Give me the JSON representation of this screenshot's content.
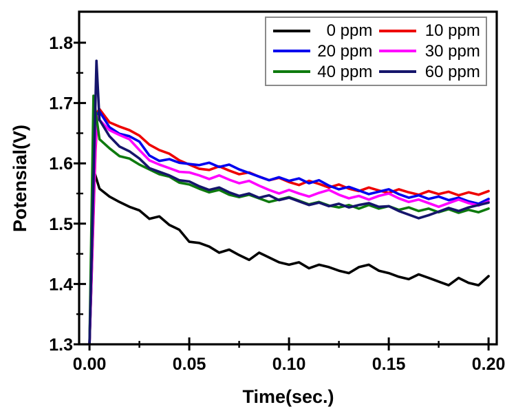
{
  "figure": {
    "background": "#ffffff",
    "frame_color": "#000000"
  },
  "legend": {
    "position": "top-right",
    "columns": 2,
    "border_color": "#8a8a8a",
    "entries": [
      "0 ppm",
      "10 ppm",
      "20 ppm",
      "30 ppm",
      "40 ppm",
      "60 ppm"
    ]
  },
  "chart_data": {
    "type": "line",
    "title": "",
    "xlabel": "Time(sec.)",
    "ylabel": "Potensial(V)",
    "xlim": [
      -0.0052,
      0.2041
    ],
    "ylim": [
      1.3,
      1.8514
    ],
    "grid": false,
    "legend_position": "top-right",
    "x_major_ticks": {
      "values": [
        0.0,
        0.05,
        0.1,
        0.15,
        0.2
      ],
      "labels": [
        "0.00",
        "0.05",
        "0.10",
        "0.15",
        "0.20"
      ]
    },
    "x_minor_ticks": [
      0.025,
      0.075,
      0.125,
      0.175
    ],
    "y_major_ticks": {
      "values": [
        1.3,
        1.4,
        1.5,
        1.6,
        1.7,
        1.8
      ],
      "labels": [
        "1.3",
        "1.4",
        "1.5",
        "1.6",
        "1.7",
        "1.8"
      ]
    },
    "y_minor_ticks": [
      1.35,
      1.45,
      1.55,
      1.65,
      1.75
    ],
    "series": [
      {
        "name": "0 ppm",
        "color": "#000000",
        "points": [
          [
            0,
            1.3
          ],
          [
            0.002,
            1.59
          ],
          [
            0.005,
            1.558
          ],
          [
            0.01,
            1.545
          ],
          [
            0.015,
            1.536
          ],
          [
            0.02,
            1.528
          ],
          [
            0.025,
            1.522
          ],
          [
            0.03,
            1.508
          ],
          [
            0.035,
            1.512
          ],
          [
            0.04,
            1.498
          ],
          [
            0.045,
            1.49
          ],
          [
            0.05,
            1.47
          ],
          [
            0.055,
            1.468
          ],
          [
            0.06,
            1.462
          ],
          [
            0.065,
            1.452
          ],
          [
            0.07,
            1.457
          ],
          [
            0.075,
            1.448
          ],
          [
            0.08,
            1.44
          ],
          [
            0.085,
            1.452
          ],
          [
            0.09,
            1.444
          ],
          [
            0.095,
            1.436
          ],
          [
            0.1,
            1.432
          ],
          [
            0.105,
            1.436
          ],
          [
            0.11,
            1.426
          ],
          [
            0.115,
            1.432
          ],
          [
            0.12,
            1.428
          ],
          [
            0.125,
            1.422
          ],
          [
            0.13,
            1.418
          ],
          [
            0.135,
            1.428
          ],
          [
            0.14,
            1.432
          ],
          [
            0.145,
            1.422
          ],
          [
            0.15,
            1.418
          ],
          [
            0.155,
            1.412
          ],
          [
            0.16,
            1.408
          ],
          [
            0.165,
            1.416
          ],
          [
            0.17,
            1.41
          ],
          [
            0.175,
            1.404
          ],
          [
            0.18,
            1.398
          ],
          [
            0.185,
            1.41
          ],
          [
            0.19,
            1.402
          ],
          [
            0.195,
            1.398
          ],
          [
            0.2,
            1.413
          ]
        ]
      },
      {
        "name": "10 ppm",
        "color": "#ee0000",
        "points": [
          [
            0,
            1.3
          ],
          [
            0.003,
            1.62
          ],
          [
            0.004,
            1.685
          ],
          [
            0.005,
            1.69
          ],
          [
            0.01,
            1.668
          ],
          [
            0.015,
            1.661
          ],
          [
            0.02,
            1.655
          ],
          [
            0.025,
            1.646
          ],
          [
            0.03,
            1.631
          ],
          [
            0.035,
            1.622
          ],
          [
            0.04,
            1.616
          ],
          [
            0.045,
            1.605
          ],
          [
            0.05,
            1.598
          ],
          [
            0.055,
            1.591
          ],
          [
            0.06,
            1.589
          ],
          [
            0.065,
            1.595
          ],
          [
            0.07,
            1.588
          ],
          [
            0.075,
            1.582
          ],
          [
            0.08,
            1.585
          ],
          [
            0.085,
            1.578
          ],
          [
            0.09,
            1.572
          ],
          [
            0.095,
            1.576
          ],
          [
            0.1,
            1.569
          ],
          [
            0.105,
            1.564
          ],
          [
            0.11,
            1.571
          ],
          [
            0.115,
            1.566
          ],
          [
            0.12,
            1.56
          ],
          [
            0.125,
            1.565
          ],
          [
            0.13,
            1.558
          ],
          [
            0.135,
            1.554
          ],
          [
            0.14,
            1.56
          ],
          [
            0.145,
            1.555
          ],
          [
            0.15,
            1.551
          ],
          [
            0.155,
            1.557
          ],
          [
            0.16,
            1.552
          ],
          [
            0.165,
            1.548
          ],
          [
            0.17,
            1.554
          ],
          [
            0.175,
            1.549
          ],
          [
            0.18,
            1.553
          ],
          [
            0.185,
            1.547
          ],
          [
            0.19,
            1.552
          ],
          [
            0.195,
            1.548
          ],
          [
            0.2,
            1.554
          ]
        ]
      },
      {
        "name": "20 ppm",
        "color": "#0000ee",
        "points": [
          [
            0,
            1.3
          ],
          [
            0.003,
            1.64
          ],
          [
            0.004,
            1.682
          ],
          [
            0.005,
            1.686
          ],
          [
            0.01,
            1.66
          ],
          [
            0.015,
            1.649
          ],
          [
            0.02,
            1.645
          ],
          [
            0.025,
            1.636
          ],
          [
            0.03,
            1.613
          ],
          [
            0.035,
            1.604
          ],
          [
            0.04,
            1.607
          ],
          [
            0.045,
            1.601
          ],
          [
            0.05,
            1.599
          ],
          [
            0.055,
            1.597
          ],
          [
            0.06,
            1.601
          ],
          [
            0.065,
            1.594
          ],
          [
            0.07,
            1.598
          ],
          [
            0.075,
            1.59
          ],
          [
            0.08,
            1.584
          ],
          [
            0.085,
            1.578
          ],
          [
            0.09,
            1.572
          ],
          [
            0.095,
            1.577
          ],
          [
            0.1,
            1.571
          ],
          [
            0.105,
            1.575
          ],
          [
            0.11,
            1.567
          ],
          [
            0.115,
            1.572
          ],
          [
            0.12,
            1.563
          ],
          [
            0.125,
            1.557
          ],
          [
            0.13,
            1.561
          ],
          [
            0.135,
            1.555
          ],
          [
            0.14,
            1.549
          ],
          [
            0.145,
            1.553
          ],
          [
            0.15,
            1.557
          ],
          [
            0.155,
            1.549
          ],
          [
            0.16,
            1.543
          ],
          [
            0.165,
            1.547
          ],
          [
            0.17,
            1.541
          ],
          [
            0.175,
            1.545
          ],
          [
            0.18,
            1.539
          ],
          [
            0.185,
            1.543
          ],
          [
            0.19,
            1.537
          ],
          [
            0.195,
            1.533
          ],
          [
            0.2,
            1.541
          ]
        ]
      },
      {
        "name": "30 ppm",
        "color": "#ff00ff",
        "points": [
          [
            0,
            1.3
          ],
          [
            0.003,
            1.63
          ],
          [
            0.004,
            1.678
          ],
          [
            0.005,
            1.672
          ],
          [
            0.01,
            1.655
          ],
          [
            0.015,
            1.647
          ],
          [
            0.02,
            1.64
          ],
          [
            0.025,
            1.622
          ],
          [
            0.03,
            1.605
          ],
          [
            0.035,
            1.598
          ],
          [
            0.04,
            1.592
          ],
          [
            0.045,
            1.586
          ],
          [
            0.05,
            1.585
          ],
          [
            0.055,
            1.58
          ],
          [
            0.06,
            1.574
          ],
          [
            0.065,
            1.58
          ],
          [
            0.07,
            1.573
          ],
          [
            0.075,
            1.567
          ],
          [
            0.08,
            1.571
          ],
          [
            0.085,
            1.563
          ],
          [
            0.09,
            1.556
          ],
          [
            0.095,
            1.55
          ],
          [
            0.1,
            1.556
          ],
          [
            0.105,
            1.55
          ],
          [
            0.11,
            1.545
          ],
          [
            0.115,
            1.551
          ],
          [
            0.12,
            1.556
          ],
          [
            0.125,
            1.548
          ],
          [
            0.13,
            1.542
          ],
          [
            0.135,
            1.546
          ],
          [
            0.14,
            1.54
          ],
          [
            0.145,
            1.546
          ],
          [
            0.15,
            1.55
          ],
          [
            0.155,
            1.542
          ],
          [
            0.16,
            1.536
          ],
          [
            0.165,
            1.54
          ],
          [
            0.17,
            1.534
          ],
          [
            0.175,
            1.528
          ],
          [
            0.18,
            1.534
          ],
          [
            0.185,
            1.54
          ],
          [
            0.19,
            1.534
          ],
          [
            0.195,
            1.53
          ],
          [
            0.2,
            1.537
          ]
        ]
      },
      {
        "name": "40 ppm",
        "color": "#0e7a0e",
        "points": [
          [
            0,
            1.3
          ],
          [
            0.002,
            1.712
          ],
          [
            0.005,
            1.64
          ],
          [
            0.01,
            1.625
          ],
          [
            0.015,
            1.612
          ],
          [
            0.02,
            1.608
          ],
          [
            0.025,
            1.598
          ],
          [
            0.03,
            1.59
          ],
          [
            0.035,
            1.582
          ],
          [
            0.04,
            1.578
          ],
          [
            0.045,
            1.568
          ],
          [
            0.05,
            1.565
          ],
          [
            0.055,
            1.558
          ],
          [
            0.06,
            1.552
          ],
          [
            0.065,
            1.556
          ],
          [
            0.07,
            1.548
          ],
          [
            0.075,
            1.544
          ],
          [
            0.08,
            1.548
          ],
          [
            0.085,
            1.542
          ],
          [
            0.09,
            1.536
          ],
          [
            0.095,
            1.54
          ],
          [
            0.1,
            1.544
          ],
          [
            0.105,
            1.538
          ],
          [
            0.11,
            1.532
          ],
          [
            0.115,
            1.536
          ],
          [
            0.12,
            1.53
          ],
          [
            0.125,
            1.527
          ],
          [
            0.13,
            1.531
          ],
          [
            0.135,
            1.525
          ],
          [
            0.14,
            1.531
          ],
          [
            0.145,
            1.525
          ],
          [
            0.15,
            1.529
          ],
          [
            0.155,
            1.523
          ],
          [
            0.16,
            1.527
          ],
          [
            0.165,
            1.521
          ],
          [
            0.17,
            1.525
          ],
          [
            0.175,
            1.519
          ],
          [
            0.18,
            1.524
          ],
          [
            0.185,
            1.518
          ],
          [
            0.19,
            1.523
          ],
          [
            0.195,
            1.519
          ],
          [
            0.2,
            1.525
          ]
        ]
      },
      {
        "name": "60 ppm",
        "color": "#15156b",
        "points": [
          [
            0,
            1.3
          ],
          [
            0.0035,
            1.77
          ],
          [
            0.005,
            1.672
          ],
          [
            0.01,
            1.645
          ],
          [
            0.015,
            1.628
          ],
          [
            0.02,
            1.62
          ],
          [
            0.025,
            1.608
          ],
          [
            0.03,
            1.592
          ],
          [
            0.035,
            1.586
          ],
          [
            0.04,
            1.58
          ],
          [
            0.045,
            1.572
          ],
          [
            0.05,
            1.57
          ],
          [
            0.055,
            1.562
          ],
          [
            0.06,
            1.556
          ],
          [
            0.065,
            1.56
          ],
          [
            0.07,
            1.552
          ],
          [
            0.075,
            1.546
          ],
          [
            0.08,
            1.55
          ],
          [
            0.085,
            1.543
          ],
          [
            0.09,
            1.547
          ],
          [
            0.095,
            1.539
          ],
          [
            0.1,
            1.543
          ],
          [
            0.105,
            1.537
          ],
          [
            0.11,
            1.531
          ],
          [
            0.115,
            1.535
          ],
          [
            0.12,
            1.529
          ],
          [
            0.125,
            1.533
          ],
          [
            0.13,
            1.527
          ],
          [
            0.135,
            1.531
          ],
          [
            0.14,
            1.534
          ],
          [
            0.145,
            1.528
          ],
          [
            0.15,
            1.529
          ],
          [
            0.155,
            1.521
          ],
          [
            0.16,
            1.515
          ],
          [
            0.165,
            1.509
          ],
          [
            0.17,
            1.514
          ],
          [
            0.175,
            1.52
          ],
          [
            0.18,
            1.526
          ],
          [
            0.185,
            1.521
          ],
          [
            0.19,
            1.527
          ],
          [
            0.195,
            1.531
          ],
          [
            0.2,
            1.535
          ]
        ]
      }
    ]
  }
}
